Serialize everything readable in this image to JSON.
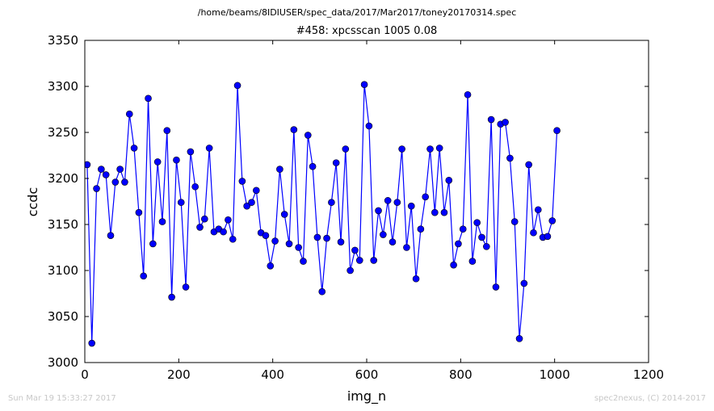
{
  "suptitle": "/home/beams/8IDIUSER/spec_data/2017/Mar2017/toney20170314.spec",
  "footer": {
    "left": "Sun Mar 19 15:33:27 2017",
    "right": "spec2nexus, (C) 2014-2017"
  },
  "colors": {
    "series": "#0000ff",
    "axes": "#000000",
    "footer": "#c8c8c8"
  },
  "chart_data": {
    "type": "line",
    "title": "#458: xpcsscan 1005 0.08",
    "xlabel": "img_n",
    "ylabel": "ccdc",
    "xlim": [
      0,
      1200
    ],
    "ylim": [
      3000,
      3350
    ],
    "xticks": [
      0,
      200,
      400,
      600,
      800,
      1000,
      1200
    ],
    "yticks": [
      3000,
      3050,
      3100,
      3150,
      3200,
      3250,
      3300,
      3350
    ],
    "grid": false,
    "legend": "none",
    "marker": "circle",
    "series": [
      {
        "x": [
          5,
          15,
          25,
          35,
          45,
          55,
          65,
          75,
          85,
          95,
          105,
          115,
          125,
          135,
          145,
          155,
          165,
          175,
          185,
          195,
          205,
          215,
          225,
          235,
          245,
          255,
          265,
          275,
          285,
          295,
          305,
          315,
          325,
          335,
          345,
          355,
          365,
          375,
          385,
          395,
          405,
          415,
          425,
          435,
          445,
          455,
          465,
          475,
          485,
          495,
          505,
          515,
          525,
          535,
          545,
          555,
          565,
          575,
          585,
          595,
          605,
          615,
          625,
          635,
          645,
          655,
          665,
          675,
          685,
          695,
          705,
          715,
          725,
          735,
          745,
          755,
          765,
          775,
          785,
          795,
          805,
          815,
          825,
          835,
          845,
          855,
          865,
          875,
          885,
          895,
          905,
          915,
          925,
          935,
          945,
          955,
          965,
          975,
          985,
          995,
          1005
        ],
        "y": [
          3215,
          3021,
          3189,
          3210,
          3204,
          3138,
          3196,
          3210,
          3196,
          3270,
          3233,
          3163,
          3094,
          3287,
          3129,
          3218,
          3153,
          3252,
          3071,
          3220,
          3174,
          3082,
          3229,
          3191,
          3147,
          3156,
          3233,
          3142,
          3145,
          3142,
          3155,
          3134,
          3301,
          3197,
          3170,
          3174,
          3187,
          3141,
          3138,
          3105,
          3132,
          3210,
          3161,
          3129,
          3253,
          3125,
          3110,
          3247,
          3213,
          3136,
          3077,
          3135,
          3174,
          3217,
          3131,
          3232,
          3100,
          3122,
          3111,
          3302,
          3257,
          3111,
          3165,
          3139,
          3176,
          3131,
          3174,
          3232,
          3125,
          3170,
          3091,
          3145,
          3180,
          3232,
          3163,
          3233,
          3163,
          3198,
          3106,
          3129,
          3145,
          3291,
          3110,
          3152,
          3136,
          3126,
          3264,
          3082,
          3259,
          3261,
          3222,
          3153,
          3026,
          3086,
          3215,
          3141,
          3166,
          3136,
          3137,
          3154,
          3252
        ]
      }
    ]
  }
}
